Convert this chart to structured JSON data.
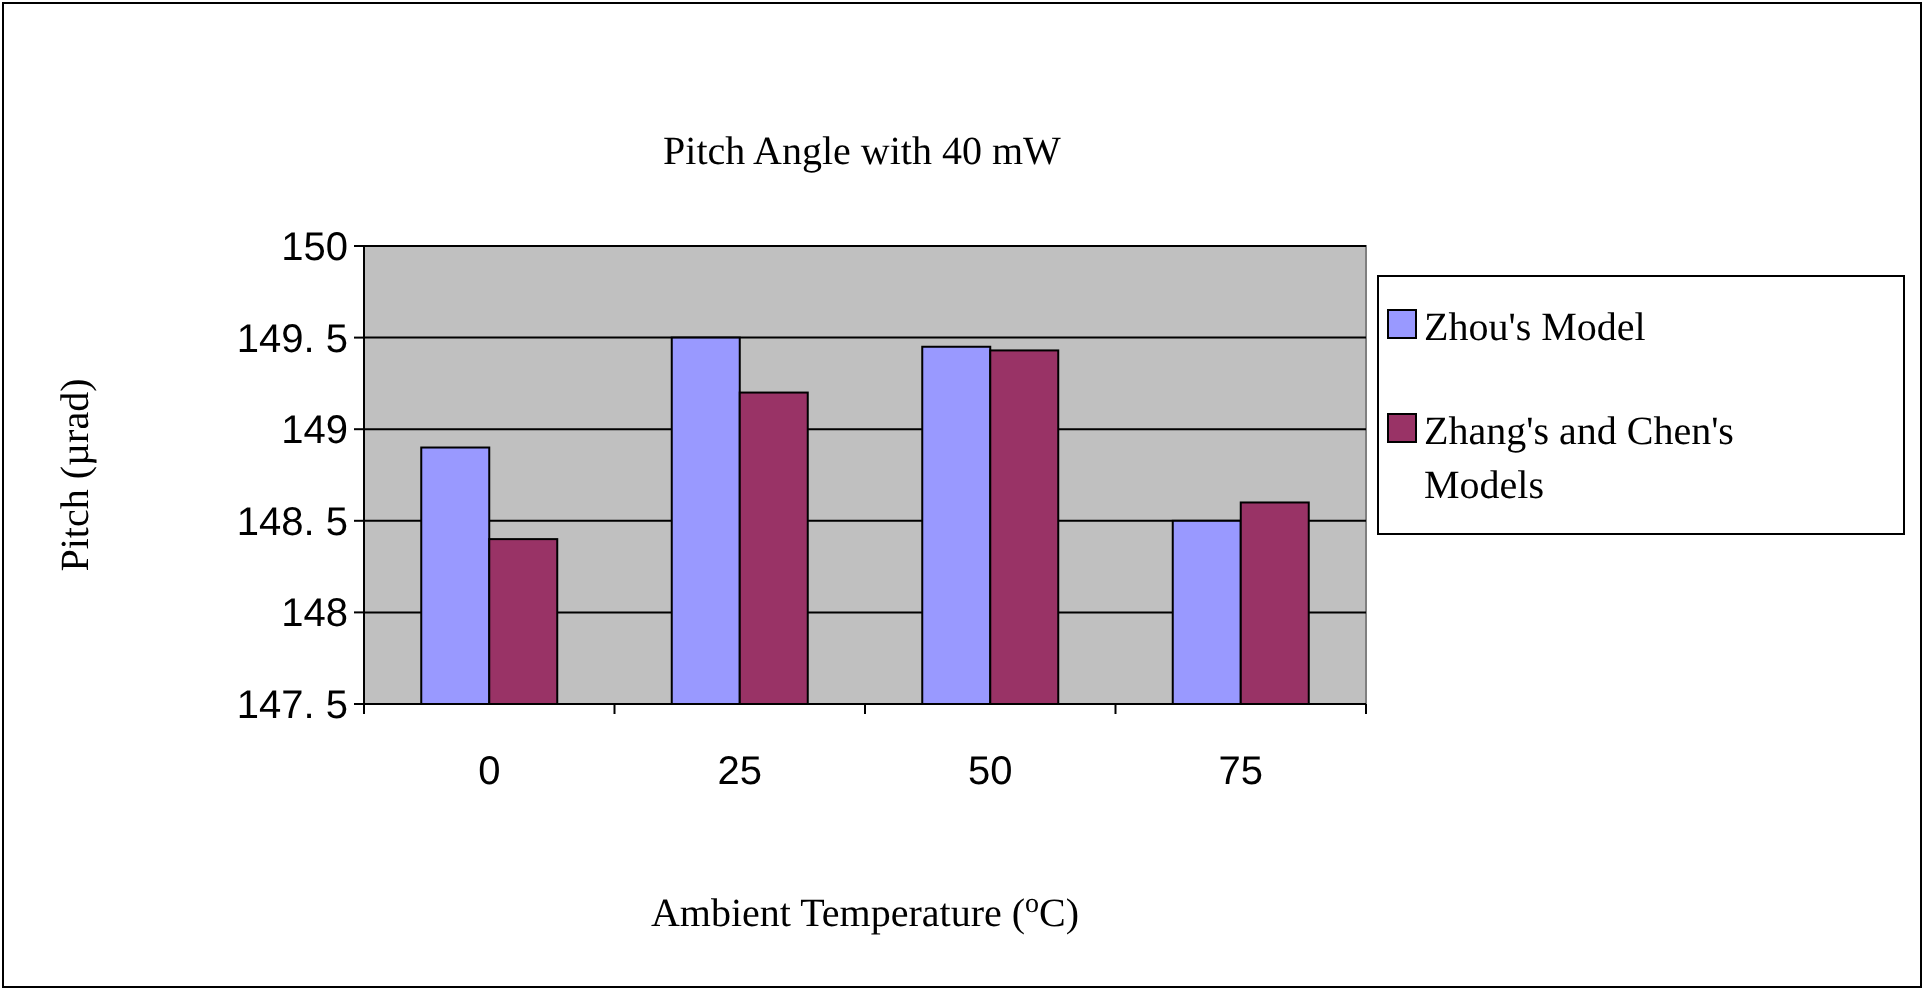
{
  "chart_data": {
    "type": "bar",
    "title": "Pitch Angle with 40 mW",
    "xlabel": "Ambient Temperature ($^{o}$C)",
    "ylabel": "Pitch (µrad)",
    "categories": [
      "0",
      "25",
      "50",
      "75"
    ],
    "series": [
      {
        "name": "Zhou's Model",
        "color": "#9999ff",
        "values": [
          148.9,
          149.5,
          149.45,
          148.5
        ]
      },
      {
        "name": "Zhang's and Chen's Models",
        "color": "#993366",
        "values": [
          148.4,
          149.2,
          149.43,
          148.6
        ]
      }
    ],
    "ylim": [
      147.5,
      150
    ],
    "yticks": [
      {
        "value": 147.5,
        "label": "147. 5"
      },
      148,
      {
        "value": 148.5,
        "label": "148. 5"
      },
      149,
      {
        "value": 149.5,
        "label": "149. 5"
      },
      150
    ],
    "grid": "y",
    "legend": "right"
  }
}
